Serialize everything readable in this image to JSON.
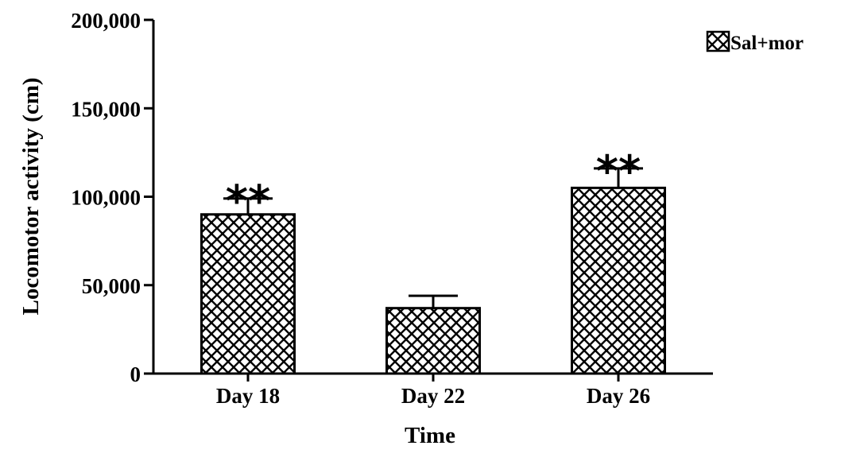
{
  "chart_data": {
    "type": "bar",
    "categories": [
      "Day 18",
      "Day 22",
      "Day 26"
    ],
    "series": [
      {
        "name": "Sal+mor",
        "values": [
          90000,
          37000,
          105000
        ],
        "errors": [
          9000,
          7000,
          11000
        ],
        "annotations": [
          "**",
          "",
          "**"
        ]
      }
    ],
    "xlabel": "Time",
    "ylabel": "Locomotor activity (cm)",
    "ylim": [
      0,
      200000
    ],
    "yticks": [
      0,
      50000,
      100000,
      150000,
      200000
    ],
    "ytick_labels": [
      "0",
      "50,000",
      "100,000",
      "150,000",
      "200,000"
    ],
    "grid": false,
    "legend": "top-right",
    "bar_pattern": "crosshatch",
    "colors": {
      "bar_fill": "#ffffff",
      "bar_hatch": "#000000",
      "axis": "#000000"
    }
  }
}
